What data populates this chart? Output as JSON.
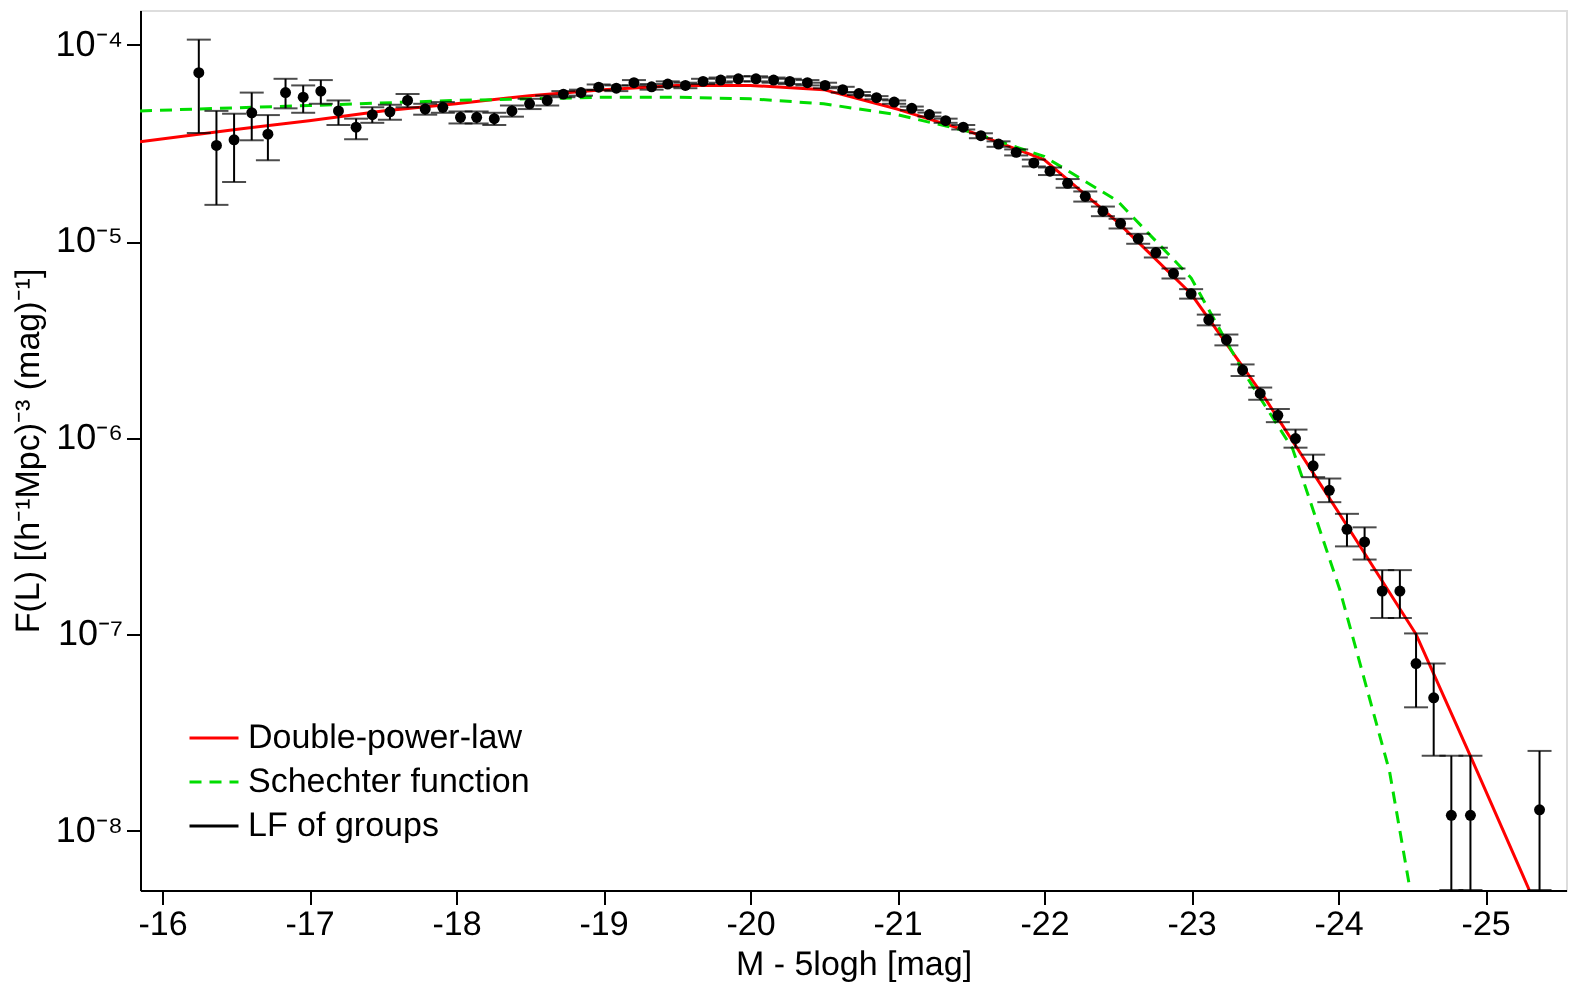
{
  "chart_data": {
    "type": "scatter",
    "xlabel": "M - 5logh  [mag]",
    "ylabel": "F(L)  [(h⁻¹Mpc)⁻³ (mag)⁻¹]",
    "xlim": [
      -15.85,
      -25.55
    ],
    "xticks": [
      -16,
      -17,
      -18,
      -19,
      -20,
      -21,
      -22,
      -23,
      -24,
      -25
    ],
    "ylim": [
      5e-09,
      0.00015
    ],
    "yticks": [
      {
        "value": 1e-08,
        "label": "10⁻⁸"
      },
      {
        "value": 1e-07,
        "label": "10⁻⁷"
      },
      {
        "value": 1e-06,
        "label": "10⁻⁶"
      },
      {
        "value": 1e-05,
        "label": "10⁻⁵"
      },
      {
        "value": 0.0001,
        "label": "10⁻⁴"
      }
    ],
    "log": "y",
    "grid": false,
    "legend": "bottom left",
    "series": [
      {
        "name": "Double-power-law",
        "type": "line",
        "color": "#ff0000",
        "line_style": "solid",
        "x": [
          -15.85,
          -16.5,
          -17,
          -17.5,
          -18,
          -18.5,
          -19,
          -19.5,
          -20,
          -20.5,
          -21,
          -21.5,
          -22,
          -22.5,
          -23,
          -23.5,
          -24,
          -24.53,
          -24.9,
          -25.3
        ],
        "values": [
          3.2e-05,
          3.7e-05,
          4.1e-05,
          4.6e-05,
          5e-05,
          5.5e-05,
          5.9e-05,
          6.2e-05,
          6.2e-05,
          5.9e-05,
          4.7e-05,
          3.6e-05,
          2.6e-05,
          1.25e-05,
          5.4e-06,
          1.6e-06,
          4.2e-07,
          1e-07,
          2.4e-08,
          5e-09
        ]
      },
      {
        "name": "Schechter function",
        "type": "line",
        "color": "#00dd00",
        "line_style": "dashed",
        "x": [
          -15.85,
          -17,
          -18,
          -19,
          -19.5,
          -20,
          -20.5,
          -21,
          -21.5,
          -22,
          -22.5,
          -23,
          -23.35,
          -23.69,
          -24.01,
          -24.35,
          -24.49
        ],
        "values": [
          4.6e-05,
          4.9e-05,
          5.2e-05,
          5.4e-05,
          5.4e-05,
          5.3e-05,
          5e-05,
          4.4e-05,
          3.6e-05,
          2.7e-05,
          1.6e-05,
          6.5e-06,
          2.2e-06,
          8.8e-07,
          1.7e-07,
          2e-08,
          5e-09
        ]
      },
      {
        "name": "LF of groups",
        "color": "#000000",
        "marker": "circle",
        "x": [
          -16.25,
          -16.37,
          -16.49,
          -16.61,
          -16.72,
          -16.84,
          -16.96,
          -17.08,
          -17.2,
          -17.32,
          -17.43,
          -17.55,
          -17.67,
          -17.79,
          -17.91,
          -18.03,
          -18.14,
          -18.26,
          -18.38,
          -18.5,
          -18.62,
          -18.73,
          -18.85,
          -18.97,
          -19.09,
          -19.21,
          -19.33,
          -19.44,
          -19.56,
          -19.68,
          -19.8,
          -19.92,
          -20.04,
          -20.16,
          -20.27,
          -20.39,
          -20.51,
          -20.63,
          -20.74,
          -20.86,
          -20.98,
          -21.1,
          -21.22,
          -21.33,
          -21.45,
          -21.57,
          -21.69,
          -21.81,
          -21.93,
          -22.04,
          -22.16,
          -22.28,
          -22.4,
          -22.52,
          -22.64,
          -22.76,
          -22.88,
          -23.0,
          -23.12,
          -23.24,
          -23.35,
          -23.47,
          -23.59,
          -23.71,
          -23.83,
          -23.94,
          -24.06,
          -24.18,
          -24.3,
          -24.42,
          -24.53,
          -24.65,
          -24.77,
          -24.9,
          -25.37
        ],
        "values": [
          7.2e-05,
          3.07e-05,
          3.28e-05,
          4.5e-05,
          3.5e-05,
          5.7e-05,
          5.4e-05,
          5.8e-05,
          4.6e-05,
          3.8e-05,
          4.4e-05,
          4.55e-05,
          5.2e-05,
          4.7e-05,
          4.8e-05,
          4.27e-05,
          4.27e-05,
          4.2e-05,
          4.6e-05,
          5e-05,
          5.2e-05,
          5.6e-05,
          5.7e-05,
          6.07e-05,
          6e-05,
          6.4e-05,
          6.1e-05,
          6.3e-05,
          6.2e-05,
          6.5e-05,
          6.6e-05,
          6.7e-05,
          6.7e-05,
          6.6e-05,
          6.5e-05,
          6.4e-05,
          6.2e-05,
          5.9e-05,
          5.64e-05,
          5.37e-05,
          5.1e-05,
          4.74e-05,
          4.41e-05,
          4.1e-05,
          3.8e-05,
          3.44e-05,
          3.12e-05,
          2.83e-05,
          2.5e-05,
          2.27e-05,
          1.97e-05,
          1.69e-05,
          1.42e-05,
          1.23e-05,
          1.03e-05,
          8.75e-06,
          6.85e-06,
          5.4e-06,
          3.98e-06,
          3.15e-06,
          2.21e-06,
          1.68e-06,
          1.3e-06,
          9.9e-07,
          7.2e-07,
          5.4e-07,
          3.42e-07,
          2.95e-07,
          1.66e-07,
          1.66e-07,
          7.1e-08,
          4.75e-08,
          1.2e-08,
          1.2e-08,
          1.28e-08
        ],
        "errors": [
          [
            3.55e-05,
            0.000106
          ],
          [
            1.53e-05,
            4.6e-05
          ],
          [
            2e-05,
            4.45e-05
          ],
          [
            3.26e-05,
            5.7e-05
          ],
          [
            2.58e-05,
            4.38e-05
          ],
          [
            4.74e-05,
            6.7e-05
          ],
          [
            4.5e-05,
            6.2e-05
          ],
          [
            5e-05,
            6.6e-05
          ],
          [
            3.9e-05,
            5.2e-05
          ],
          [
            3.3e-05,
            4.2e-05
          ],
          4e-06,
          4e-06,
          4e-06,
          3e-06,
          3e-06,
          3e-06,
          3e-06,
          3e-06,
          3e-06,
          3e-06,
          3e-06,
          2e-06,
          2e-06,
          2e-06,
          2e-06,
          2e-06,
          2e-06,
          2e-06,
          2e-06,
          2e-06,
          2e-06,
          2e-06,
          2e-06,
          2e-06,
          2e-06,
          2e-06,
          2e-06,
          2e-06,
          1e-06,
          1e-06,
          1e-06,
          1e-06,
          1e-06,
          1e-06,
          1e-06,
          1e-06,
          1e-06,
          1e-06,
          1e-06,
          1e-06,
          1e-06,
          1e-06,
          8e-07,
          7e-07,
          6e-07,
          5e-07,
          4e-07,
          3e-07,
          2.5e-07,
          2e-07,
          1.5e-07,
          1.2e-07,
          1e-07,
          [
            8.9e-07,
            1.1e-06
          ],
          [
            6.3e-07,
            8.2e-07
          ],
          [
            4.7e-07,
            6.2e-07
          ],
          [
            2.8e-07,
            4.1e-07
          ],
          [
            2.4e-07,
            3.5e-07
          ],
          [
            1.21e-07,
            2.12e-07
          ],
          [
            1.21e-07,
            2.12e-07
          ],
          [
            4.25e-08,
            1.01e-07
          ],
          [
            2.41e-08,
            7.1e-08
          ],
          [
            5e-09,
            2.41e-08
          ],
          [
            5e-09,
            2.41e-08
          ],
          [
            5e-09,
            2.55e-08
          ]
        ]
      }
    ]
  }
}
